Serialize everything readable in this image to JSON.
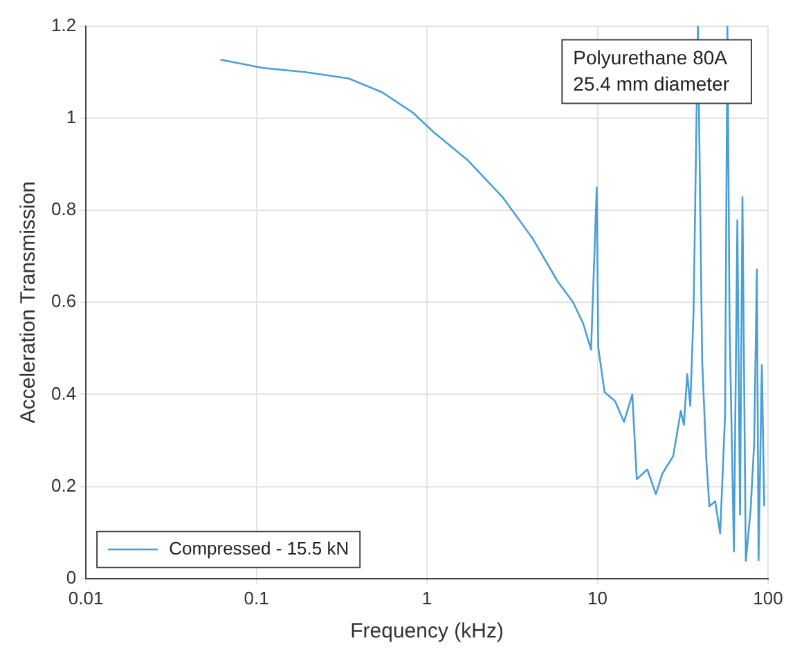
{
  "chart_data": {
    "type": "line",
    "xlabel": "Frequency (kHz)",
    "ylabel": "Acceleration Transmission",
    "log": "x",
    "xlim": [
      0.01,
      100
    ],
    "xticks": [
      0.01,
      0.1,
      1,
      10,
      100
    ],
    "ylim": [
      0,
      1.2
    ],
    "yticks": [
      0,
      0.2,
      0.4,
      0.6,
      0.8,
      1,
      1.2
    ],
    "grid": true,
    "legend": "bottom left",
    "annotations": [
      "Polyurethane 80A\n25.4 mm diameter"
    ],
    "x": [
      0.0615,
      0.109,
      0.193,
      0.348,
      0.546,
      0.826,
      1.09,
      1.74,
      2.78,
      4.14,
      5.85,
      7.2,
      8.26,
      9.17,
      9.9,
      10.1,
      11.0,
      12.7,
      14.3,
      16.0,
      17.0,
      19.6,
      22.0,
      24.0,
      27.8,
      30.8,
      32.1,
      33.6,
      35.0,
      36.6,
      38.8,
      41.1,
      43.5,
      45.3,
      49.0,
      52.4,
      56.0,
      57.8,
      59.5,
      63.1,
      66.1,
      68.5,
      70.8,
      74.1,
      79.0,
      83,
      86,
      88,
      92,
      95
    ],
    "series": [
      {
        "name": "Compressed - 15.5 kN",
        "color": "#4a9fd4",
        "values": [
          1.127,
          1.109,
          1.1,
          1.086,
          1.056,
          1.012,
          0.97,
          0.908,
          0.828,
          0.74,
          0.645,
          0.6,
          0.553,
          0.497,
          0.85,
          0.503,
          0.405,
          0.385,
          0.34,
          0.4,
          0.216,
          0.237,
          0.183,
          0.228,
          0.266,
          0.364,
          0.334,
          0.444,
          0.375,
          0.58,
          1.2,
          0.473,
          0.257,
          0.157,
          0.168,
          0.098,
          0.355,
          1.2,
          0.553,
          0.059,
          0.778,
          0.139,
          0.828,
          0.038,
          0.148,
          0.296,
          0.671,
          0.04,
          0.464,
          0.157
        ]
      }
    ]
  }
}
